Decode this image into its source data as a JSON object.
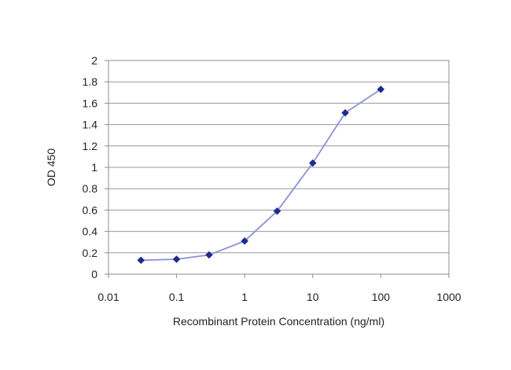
{
  "chart_data": {
    "type": "line",
    "title": "",
    "xlabel": "Recombinant Protein Concentration (ng/ml)",
    "ylabel": "OD 450",
    "x_scale": "log",
    "xlim": [
      0.01,
      1000
    ],
    "ylim": [
      0,
      2
    ],
    "x_ticks": [
      0.01,
      0.1,
      1,
      10,
      100,
      1000
    ],
    "x_tick_labels": [
      "0.01",
      "0.1",
      "1",
      "10",
      "100",
      "1000"
    ],
    "y_ticks": [
      0,
      0.2,
      0.4,
      0.6,
      0.8,
      1,
      1.2,
      1.4,
      1.6,
      1.8,
      2
    ],
    "y_tick_labels": [
      "0",
      "0.2",
      "0.4",
      "0.6",
      "0.8",
      "1",
      "1.2",
      "1.4",
      "1.6",
      "1.8",
      "2"
    ],
    "grid": "horizontal",
    "legend": "none",
    "series": [
      {
        "x": [
          0.03,
          0.1,
          0.3,
          1,
          3,
          10,
          30,
          100
        ],
        "y": [
          0.13,
          0.14,
          0.18,
          0.31,
          0.59,
          1.04,
          1.51,
          1.73
        ],
        "line_color": "#8a93d8",
        "marker_color": "#1f2a8c"
      }
    ]
  }
}
